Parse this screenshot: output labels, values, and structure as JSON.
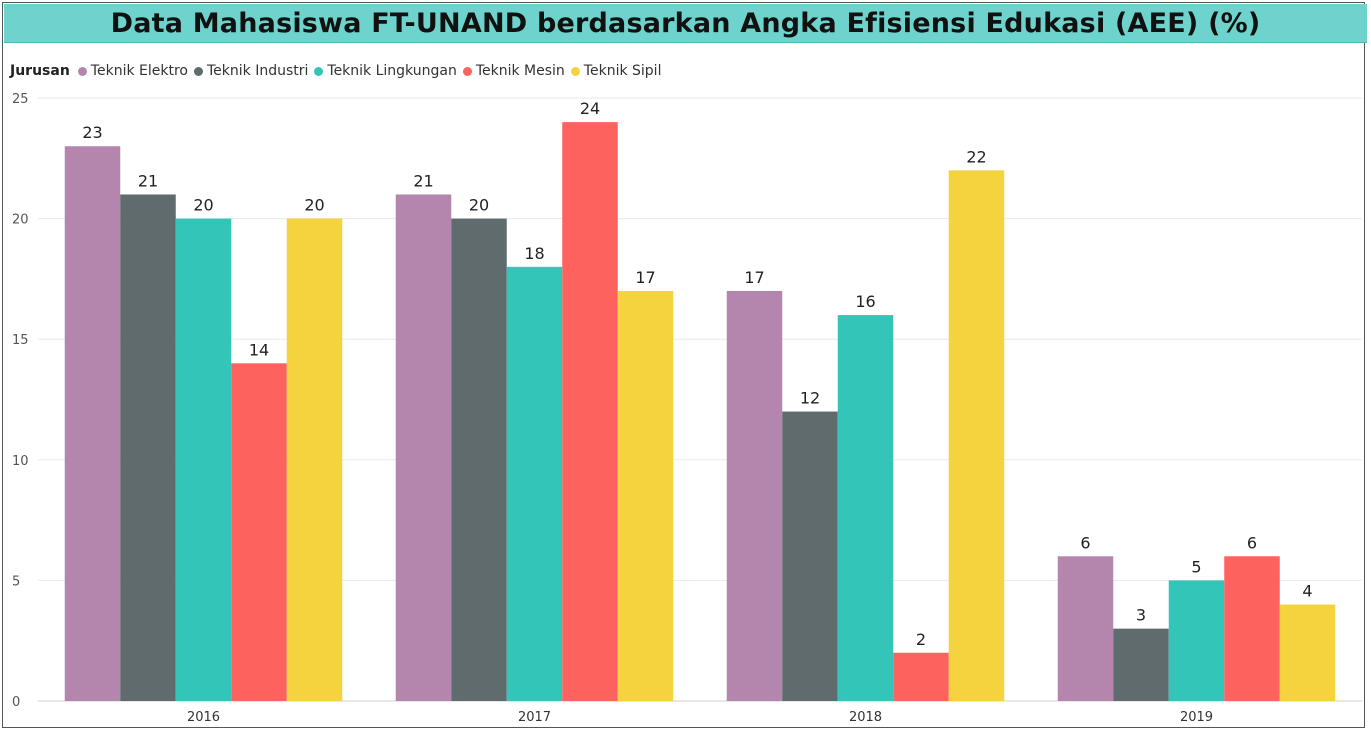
{
  "chart_data": {
    "type": "bar",
    "title": "Data Mahasiswa FT-UNAND berdasarkan Angka Efisiensi Edukasi (AEE) (%)",
    "legend_title": "Jurusan",
    "legend_position": "top-left",
    "categories": [
      "2016",
      "2017",
      "2018",
      "2019"
    ],
    "ylim": [
      0,
      25
    ],
    "yticks": [
      0,
      5,
      10,
      15,
      20,
      25
    ],
    "grid": true,
    "series": [
      {
        "name": "Teknik Elektro",
        "color": "#b586ad",
        "values": [
          23,
          21,
          17,
          6
        ]
      },
      {
        "name": "Teknik Industri",
        "color": "#5f6b6d",
        "values": [
          21,
          20,
          12,
          3
        ]
      },
      {
        "name": "Teknik Lingkungan",
        "color": "#33c5b8",
        "values": [
          20,
          18,
          16,
          5
        ]
      },
      {
        "name": "Teknik Mesin",
        "color": "#fd625e",
        "values": [
          14,
          24,
          2,
          6
        ]
      },
      {
        "name": "Teknik Sipil",
        "color": "#f5d33f",
        "values": [
          20,
          17,
          22,
          4
        ]
      }
    ]
  }
}
